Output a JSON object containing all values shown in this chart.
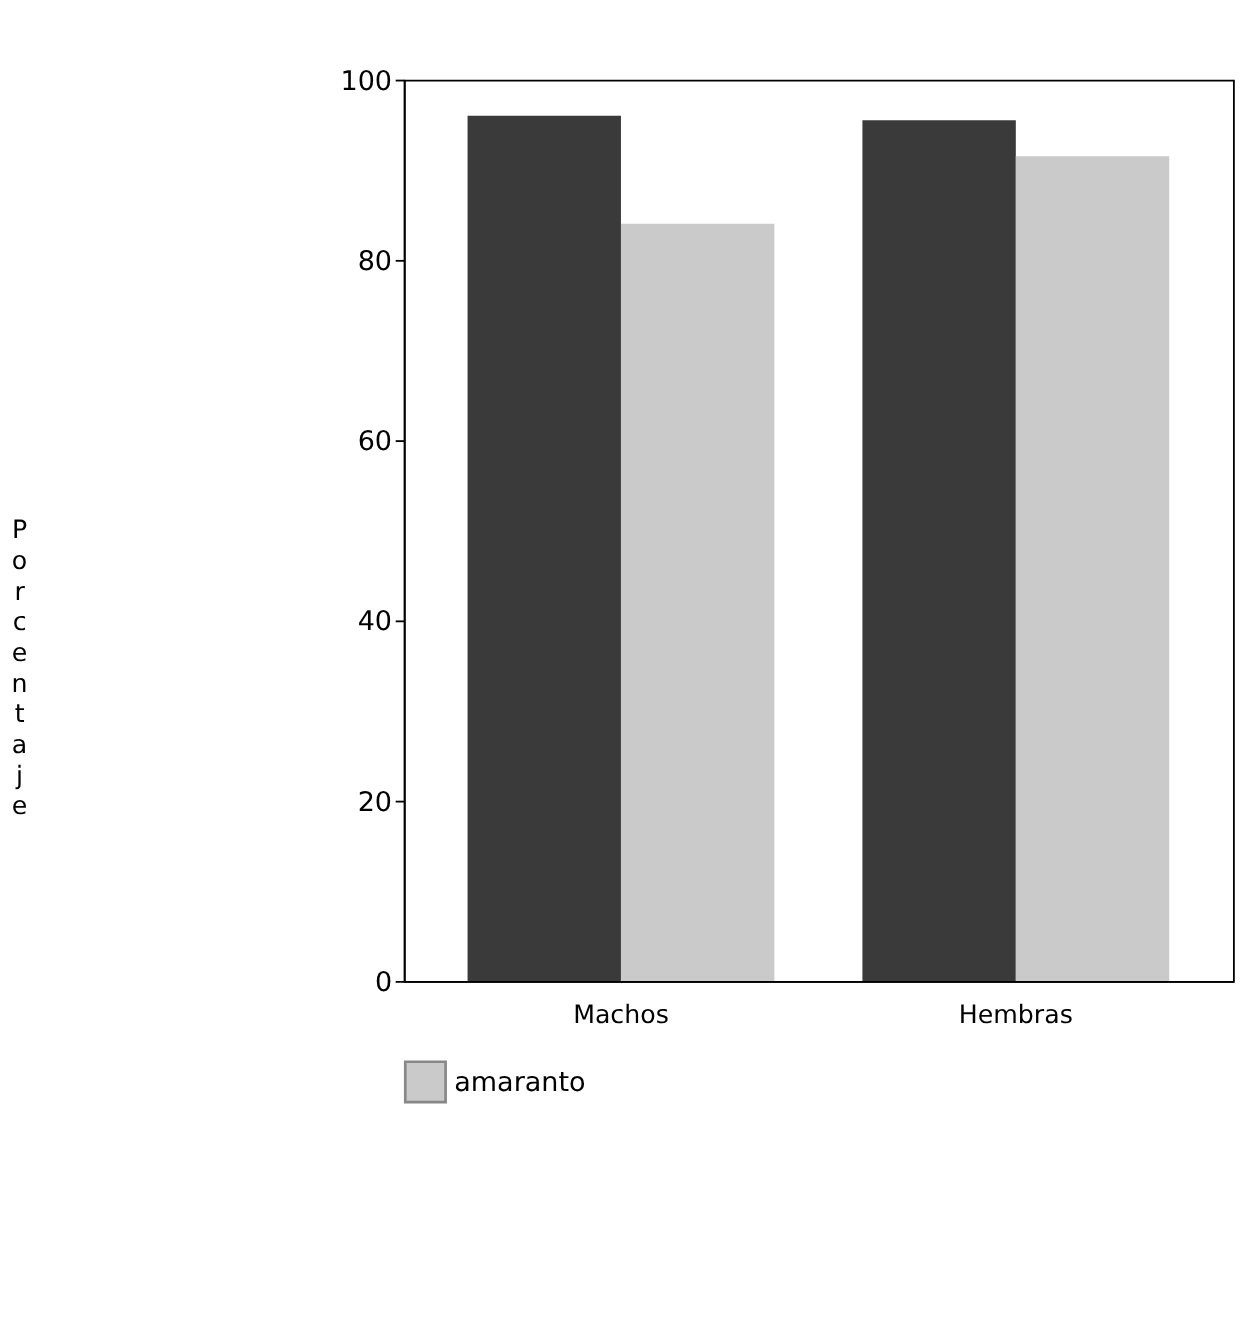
{
  "chart_data": {
    "type": "bar",
    "ylabel": "Porcentaje",
    "categories": [
      "Machos",
      "Hembras"
    ],
    "series": [
      {
        "color": "#3a3a3a",
        "values": [
          96,
          95.5
        ]
      },
      {
        "name": "amaranto",
        "color": "#cacaca",
        "values": [
          84,
          91.5
        ]
      }
    ],
    "ylim": [
      0,
      100
    ],
    "yticks": [
      0,
      20,
      40,
      60,
      80,
      100
    ],
    "grid": false,
    "legend": "bottom"
  }
}
